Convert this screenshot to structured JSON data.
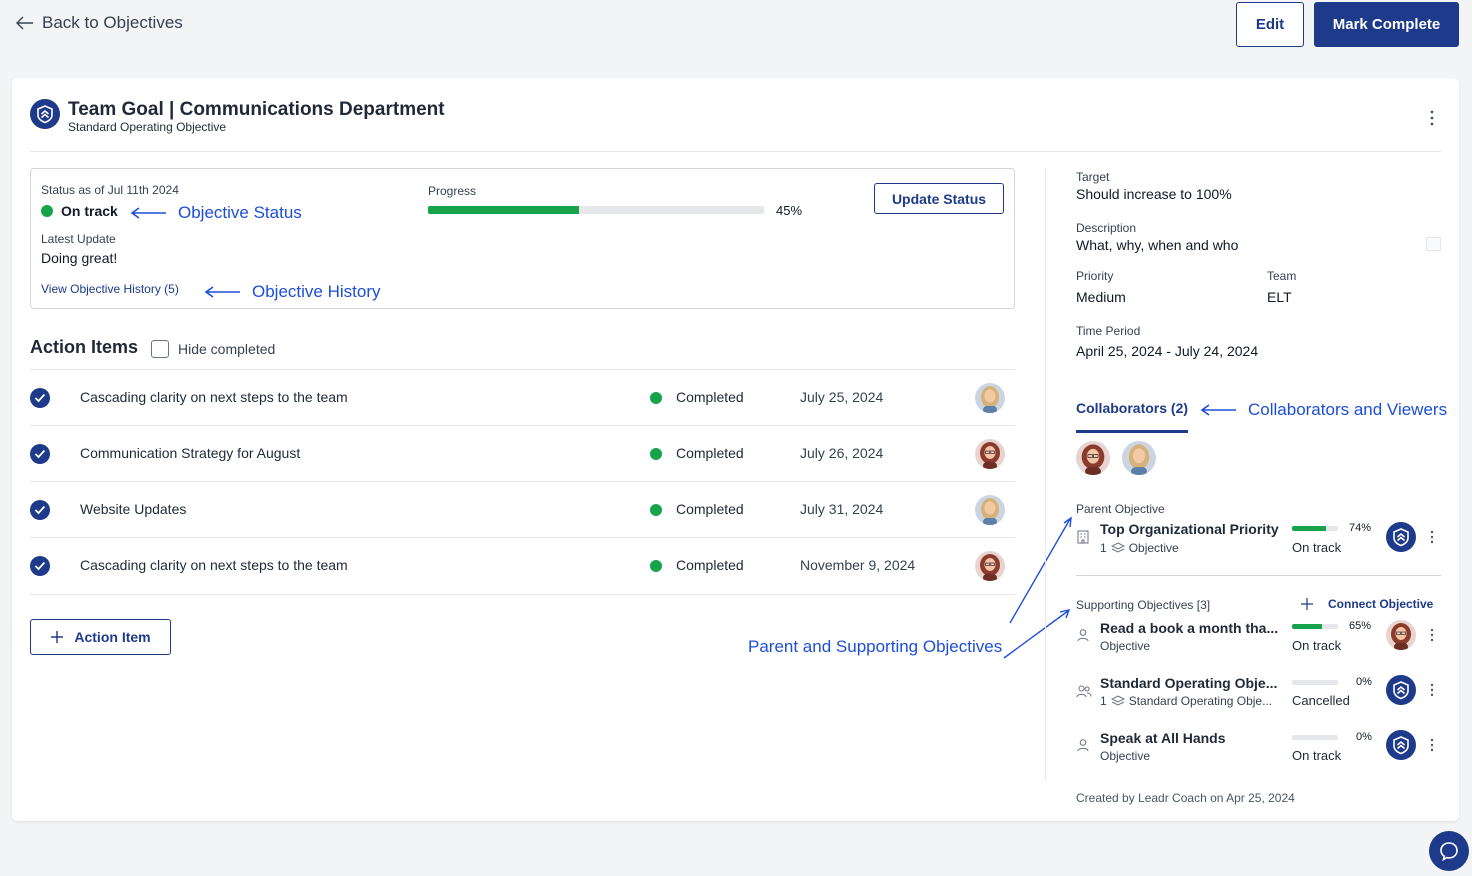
{
  "topbar": {
    "back_label": "Back to Objectives",
    "edit_label": "Edit",
    "complete_label": "Mark Complete"
  },
  "header": {
    "title": "Team Goal | Communications Department",
    "subtitle": "Standard Operating Objective"
  },
  "status": {
    "as_of_label": "Status as of Jul 11th 2024",
    "value": "On track",
    "latest_label": "Latest Update",
    "latest_value": "Doing great!",
    "history_link": "View Objective History (5)",
    "progress_label": "Progress",
    "progress_percent": 45,
    "progress_text": "45%",
    "update_button": "Update Status"
  },
  "annotations": {
    "objective_status": "Objective Status",
    "objective_history": "Objective History",
    "collaborators": "Collaborators and Viewers",
    "parent_supporting": "Parent and Supporting Objectives"
  },
  "action_items": {
    "title": "Action Items",
    "hide_completed": "Hide completed",
    "items": [
      {
        "name": "Cascading clarity on next steps to the team",
        "status": "Completed",
        "date": "July 25, 2024",
        "avatar": "blonde"
      },
      {
        "name": "Communication Strategy for August",
        "status": "Completed",
        "date": "July 26, 2024",
        "avatar": "redhead"
      },
      {
        "name": "Website Updates",
        "status": "Completed",
        "date": "July 31, 2024",
        "avatar": "blonde"
      },
      {
        "name": "Cascading clarity on next steps to the team",
        "status": "Completed",
        "date": "November 9, 2024",
        "avatar": "redhead"
      }
    ],
    "add_button": "Action Item"
  },
  "details": {
    "target_label": "Target",
    "target_value": "Should increase to 100%",
    "description_label": "Description",
    "description_value": "What, why, when and who",
    "priority_label": "Priority",
    "priority_value": "Medium",
    "team_label": "Team",
    "team_value": "ELT",
    "period_label": "Time Period",
    "period_value": "April 25, 2024 - July 24, 2024"
  },
  "collaborators": {
    "tab_label": "Collaborators (2)"
  },
  "parent": {
    "label": "Parent Objective",
    "name": "Top Organizational Priority",
    "sub_count": "1",
    "sub_type": "Objective",
    "percent": 74,
    "percent_text": "74%",
    "status": "On track"
  },
  "supporting": {
    "label": "Supporting Objectives [3]",
    "connect": "Connect Objective",
    "items": [
      {
        "name": "Read a book a month tha...",
        "sub": "Objective",
        "percent": 65,
        "percent_text": "65%",
        "status": "On track"
      },
      {
        "name": "Standard Operating Obje...",
        "sub_count": "1",
        "sub": "Standard Operating Obje...",
        "percent": 0,
        "percent_text": "0%",
        "status": "Cancelled"
      },
      {
        "name": "Speak at All Hands",
        "sub": "Objective",
        "percent": 0,
        "percent_text": "0%",
        "status": "On track"
      }
    ]
  },
  "footer": {
    "created_by": "Created by Leadr Coach on Apr 25, 2024"
  },
  "colors": {
    "brand": "#1e3a8a",
    "success": "#16a34a",
    "annotation": "#1d4ed8"
  }
}
